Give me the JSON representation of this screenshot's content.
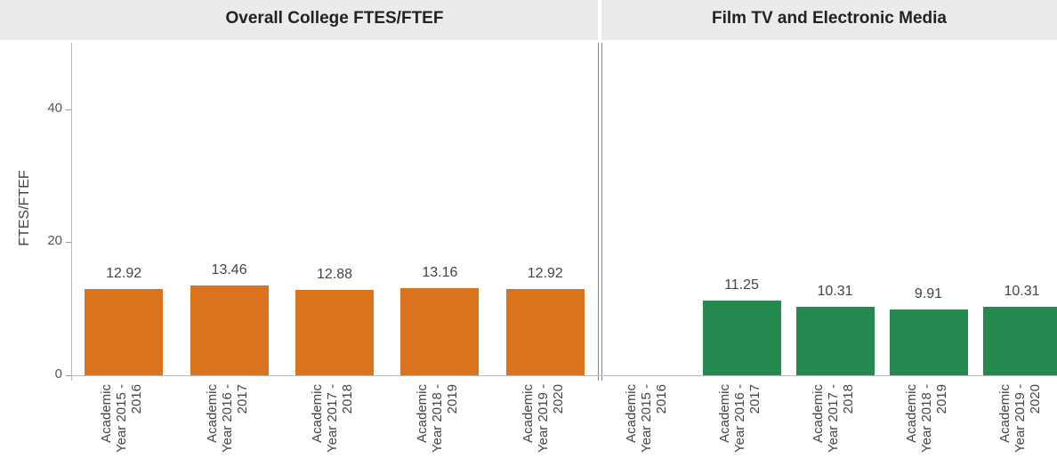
{
  "chart_data": [
    {
      "type": "bar",
      "title": "Overall College FTES/FTEF",
      "y_label": "FTES/FTEF",
      "categories": [
        "Academic Year 2015 - 2016",
        "Academic Year 2016 - 2017",
        "Academic Year 2017 - 2018",
        "Academic Year 2018 - 2019",
        "Academic Year 2019 - 2020"
      ],
      "values": [
        12.92,
        13.46,
        12.88,
        13.16,
        12.92
      ],
      "color": "#d9731e",
      "ylim": [
        0,
        50
      ],
      "yticks": [
        0,
        20,
        40
      ]
    },
    {
      "type": "bar",
      "title": "Film TV and Electronic Media",
      "categories": [
        "Academic Year 2015 - 2016",
        "Academic Year 2016 - 2017",
        "Academic Year 2017 - 2018",
        "Academic Year 2018 - 2019",
        "Academic Year 2019 - 2020"
      ],
      "values": [
        null,
        11.25,
        10.31,
        9.91,
        10.31
      ],
      "color": "#248a50",
      "ylim": [
        0,
        50
      ]
    }
  ]
}
